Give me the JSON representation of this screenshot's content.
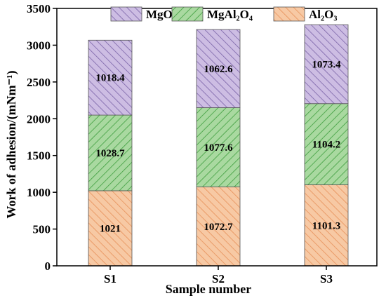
{
  "chart_data": {
    "type": "bar",
    "stacked": true,
    "categories": [
      "S1",
      "S2",
      "S3"
    ],
    "series": [
      {
        "name": "Al₂O₃",
        "values": [
          1021,
          1072.7,
          1101.3
        ],
        "fill": "#f7c9a4",
        "stroke": "#e7915a"
      },
      {
        "name": "MgAl₂O₄",
        "values": [
          1028.7,
          1077.6,
          1104.2
        ],
        "fill": "#a9d9a0",
        "stroke": "#3f9e3f"
      },
      {
        "name": "MgO",
        "values": [
          1018.4,
          1062.6,
          1073.4
        ],
        "fill": "#cdbde3",
        "stroke": "#7b64a8"
      }
    ],
    "data_labels": {
      "Al₂O₃": [
        "1021",
        "1072.7",
        "1101.3"
      ],
      "MgAl₂O₄": [
        "1028.7",
        "1077.6",
        "1104.2"
      ],
      "MgO": [
        "1018.4",
        "1062.6",
        "1073.4"
      ]
    },
    "legend_order": [
      "MgO",
      "MgAl₂O₄",
      "Al₂O₃"
    ],
    "legend_position": "top",
    "xlabel": "Sample number",
    "ylabel": "Work of adhesion/(mNm⁻¹)",
    "ylim": [
      0,
      3500
    ],
    "yticks": [
      0,
      500,
      1000,
      1500,
      2000,
      2500,
      3000,
      3500
    ],
    "grid": false
  }
}
